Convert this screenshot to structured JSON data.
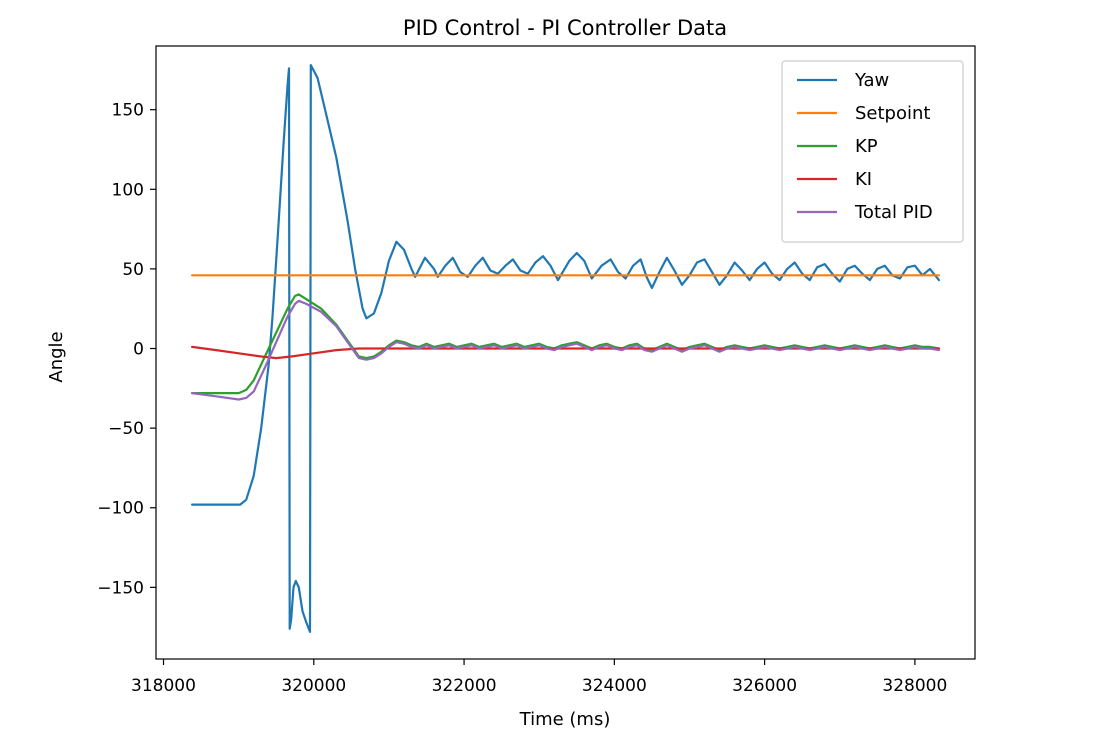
{
  "chart_data": {
    "type": "line",
    "title": "PID Control - PI Controller Data",
    "xlabel": "Time (ms)",
    "ylabel": "Angle",
    "xlim": [
      317900,
      328800
    ],
    "ylim": [
      -195,
      190
    ],
    "xticks": [
      318000,
      320000,
      322000,
      324000,
      326000,
      328000
    ],
    "xtick_labels": [
      "318000",
      "320000",
      "322000",
      "324000",
      "326000",
      "328000"
    ],
    "yticks": [
      -150,
      -100,
      -50,
      0,
      50,
      100,
      150
    ],
    "ytick_labels": [
      "−150",
      "−100",
      "−50",
      "0",
      "50",
      "100",
      "150"
    ],
    "grid": false,
    "legend_position": "top-right",
    "series": [
      {
        "name": "Yaw",
        "color": "#1f77b4",
        "points": [
          [
            318380,
            -98
          ],
          [
            318700,
            -98
          ],
          [
            319020,
            -98
          ],
          [
            319100,
            -95
          ],
          [
            319200,
            -80
          ],
          [
            319300,
            -50
          ],
          [
            319400,
            -10
          ],
          [
            319450,
            20
          ],
          [
            319520,
            70
          ],
          [
            319600,
            130
          ],
          [
            319650,
            165
          ],
          [
            319670,
            176
          ],
          [
            319680,
            -176
          ],
          [
            319700,
            -170
          ],
          [
            319730,
            -150
          ],
          [
            319760,
            -146
          ],
          [
            319800,
            -150
          ],
          [
            319850,
            -165
          ],
          [
            319900,
            -172
          ],
          [
            319950,
            -178
          ],
          [
            319960,
            178
          ],
          [
            320050,
            170
          ],
          [
            320150,
            150
          ],
          [
            320300,
            120
          ],
          [
            320450,
            80
          ],
          [
            320550,
            50
          ],
          [
            320650,
            25
          ],
          [
            320700,
            19
          ],
          [
            320800,
            22
          ],
          [
            320900,
            35
          ],
          [
            321000,
            55
          ],
          [
            321100,
            67
          ],
          [
            321200,
            62
          ],
          [
            321300,
            50
          ],
          [
            321350,
            45
          ],
          [
            321480,
            57
          ],
          [
            321600,
            50
          ],
          [
            321650,
            45
          ],
          [
            321750,
            52
          ],
          [
            321850,
            57
          ],
          [
            321950,
            48
          ],
          [
            322050,
            45
          ],
          [
            322150,
            52
          ],
          [
            322250,
            57
          ],
          [
            322350,
            49
          ],
          [
            322450,
            47
          ],
          [
            322550,
            52
          ],
          [
            322650,
            56
          ],
          [
            322750,
            49
          ],
          [
            322850,
            47
          ],
          [
            322950,
            54
          ],
          [
            323050,
            58
          ],
          [
            323150,
            52
          ],
          [
            323250,
            43
          ],
          [
            323400,
            55
          ],
          [
            323500,
            60
          ],
          [
            323600,
            55
          ],
          [
            323700,
            44
          ],
          [
            323830,
            52
          ],
          [
            323950,
            56
          ],
          [
            324050,
            48
          ],
          [
            324150,
            44
          ],
          [
            324250,
            52
          ],
          [
            324350,
            56
          ],
          [
            324430,
            45
          ],
          [
            324500,
            38
          ],
          [
            324600,
            48
          ],
          [
            324700,
            57
          ],
          [
            324800,
            49
          ],
          [
            324900,
            40
          ],
          [
            325000,
            46
          ],
          [
            325100,
            54
          ],
          [
            325200,
            56
          ],
          [
            325300,
            48
          ],
          [
            325400,
            40
          ],
          [
            325500,
            46
          ],
          [
            325600,
            54
          ],
          [
            325700,
            49
          ],
          [
            325800,
            43
          ],
          [
            325900,
            50
          ],
          [
            326000,
            54
          ],
          [
            326100,
            47
          ],
          [
            326200,
            43
          ],
          [
            326300,
            50
          ],
          [
            326400,
            54
          ],
          [
            326500,
            47
          ],
          [
            326600,
            43
          ],
          [
            326700,
            51
          ],
          [
            326800,
            53
          ],
          [
            326900,
            47
          ],
          [
            327000,
            42
          ],
          [
            327100,
            50
          ],
          [
            327200,
            52
          ],
          [
            327300,
            47
          ],
          [
            327400,
            43
          ],
          [
            327500,
            50
          ],
          [
            327600,
            52
          ],
          [
            327700,
            46
          ],
          [
            327800,
            44
          ],
          [
            327900,
            51
          ],
          [
            328000,
            52
          ],
          [
            328100,
            46
          ],
          [
            328200,
            50
          ],
          [
            328320,
            43
          ]
        ]
      },
      {
        "name": "Setpoint",
        "color": "#ff7f0e",
        "points": [
          [
            318380,
            46
          ],
          [
            328320,
            46
          ]
        ]
      },
      {
        "name": "KP",
        "color": "#2ca02c",
        "points": [
          [
            318380,
            -28
          ],
          [
            318700,
            -28
          ],
          [
            319000,
            -28
          ],
          [
            319100,
            -26
          ],
          [
            319200,
            -20
          ],
          [
            319350,
            -5
          ],
          [
            319500,
            10
          ],
          [
            319650,
            25
          ],
          [
            319750,
            33
          ],
          [
            319800,
            34
          ],
          [
            319900,
            31
          ],
          [
            320100,
            25
          ],
          [
            320300,
            15
          ],
          [
            320450,
            5
          ],
          [
            320600,
            -5
          ],
          [
            320700,
            -6
          ],
          [
            320800,
            -5
          ],
          [
            320900,
            -2
          ],
          [
            321000,
            2
          ],
          [
            321100,
            5
          ],
          [
            321200,
            4
          ],
          [
            321300,
            2
          ],
          [
            321400,
            1
          ],
          [
            321500,
            3
          ],
          [
            321600,
            1
          ],
          [
            321700,
            2
          ],
          [
            321800,
            3
          ],
          [
            321900,
            1
          ],
          [
            322000,
            2
          ],
          [
            322100,
            3
          ],
          [
            322200,
            1
          ],
          [
            322300,
            2
          ],
          [
            322400,
            3
          ],
          [
            322500,
            1
          ],
          [
            322600,
            2
          ],
          [
            322700,
            3
          ],
          [
            322800,
            1
          ],
          [
            322900,
            2
          ],
          [
            323000,
            3
          ],
          [
            323100,
            1
          ],
          [
            323200,
            0
          ],
          [
            323300,
            2
          ],
          [
            323400,
            3
          ],
          [
            323500,
            4
          ],
          [
            323600,
            2
          ],
          [
            323700,
            0
          ],
          [
            323800,
            2
          ],
          [
            323900,
            3
          ],
          [
            324000,
            1
          ],
          [
            324100,
            0
          ],
          [
            324200,
            2
          ],
          [
            324300,
            3
          ],
          [
            324400,
            0
          ],
          [
            324500,
            -1
          ],
          [
            324600,
            1
          ],
          [
            324700,
            3
          ],
          [
            324800,
            1
          ],
          [
            324900,
            -1
          ],
          [
            325000,
            1
          ],
          [
            325100,
            2
          ],
          [
            325200,
            3
          ],
          [
            325300,
            1
          ],
          [
            325400,
            -1
          ],
          [
            325500,
            1
          ],
          [
            325600,
            2
          ],
          [
            325700,
            1
          ],
          [
            325800,
            0
          ],
          [
            325900,
            1
          ],
          [
            326000,
            2
          ],
          [
            326100,
            1
          ],
          [
            326200,
            0
          ],
          [
            326300,
            1
          ],
          [
            326400,
            2
          ],
          [
            326500,
            1
          ],
          [
            326600,
            0
          ],
          [
            326700,
            1
          ],
          [
            326800,
            2
          ],
          [
            326900,
            1
          ],
          [
            327000,
            0
          ],
          [
            327100,
            1
          ],
          [
            327200,
            2
          ],
          [
            327300,
            1
          ],
          [
            327400,
            0
          ],
          [
            327500,
            1
          ],
          [
            327600,
            2
          ],
          [
            327700,
            1
          ],
          [
            327800,
            0
          ],
          [
            327900,
            1
          ],
          [
            328000,
            2
          ],
          [
            328100,
            1
          ],
          [
            328200,
            1
          ],
          [
            328320,
            0
          ]
        ]
      },
      {
        "name": "KI",
        "color": "#d62728",
        "points": [
          [
            318380,
            1
          ],
          [
            318700,
            -1
          ],
          [
            319000,
            -3
          ],
          [
            319300,
            -5
          ],
          [
            319500,
            -6
          ],
          [
            319700,
            -5
          ],
          [
            320000,
            -3
          ],
          [
            320300,
            -1
          ],
          [
            320600,
            0
          ],
          [
            321000,
            0
          ],
          [
            322000,
            0
          ],
          [
            324000,
            0
          ],
          [
            326000,
            0
          ],
          [
            328320,
            0
          ]
        ]
      },
      {
        "name": "Total PID",
        "color": "#9467bd",
        "points": [
          [
            318380,
            -28
          ],
          [
            318700,
            -30
          ],
          [
            319000,
            -32
          ],
          [
            319100,
            -31
          ],
          [
            319200,
            -27
          ],
          [
            319350,
            -12
          ],
          [
            319500,
            4
          ],
          [
            319650,
            20
          ],
          [
            319750,
            28
          ],
          [
            319800,
            30
          ],
          [
            319900,
            28
          ],
          [
            320100,
            23
          ],
          [
            320300,
            14
          ],
          [
            320450,
            4
          ],
          [
            320600,
            -6
          ],
          [
            320700,
            -7
          ],
          [
            320800,
            -6
          ],
          [
            320900,
            -3
          ],
          [
            321000,
            1
          ],
          [
            321100,
            4
          ],
          [
            321200,
            3
          ],
          [
            321300,
            1
          ],
          [
            321400,
            0
          ],
          [
            321500,
            2
          ],
          [
            321600,
            0
          ],
          [
            321700,
            1
          ],
          [
            321800,
            2
          ],
          [
            321900,
            0
          ],
          [
            322000,
            1
          ],
          [
            322100,
            2
          ],
          [
            322200,
            0
          ],
          [
            322300,
            1
          ],
          [
            322400,
            2
          ],
          [
            322500,
            0
          ],
          [
            322600,
            1
          ],
          [
            322700,
            2
          ],
          [
            322800,
            0
          ],
          [
            322900,
            1
          ],
          [
            323000,
            2
          ],
          [
            323100,
            0
          ],
          [
            323200,
            -1
          ],
          [
            323300,
            1
          ],
          [
            323400,
            2
          ],
          [
            323500,
            3
          ],
          [
            323600,
            1
          ],
          [
            323700,
            -1
          ],
          [
            323800,
            1
          ],
          [
            323900,
            2
          ],
          [
            324000,
            0
          ],
          [
            324100,
            -1
          ],
          [
            324200,
            1
          ],
          [
            324300,
            2
          ],
          [
            324400,
            -1
          ],
          [
            324500,
            -2
          ],
          [
            324600,
            0
          ],
          [
            324700,
            2
          ],
          [
            324800,
            0
          ],
          [
            324900,
            -2
          ],
          [
            325000,
            0
          ],
          [
            325100,
            1
          ],
          [
            325200,
            2
          ],
          [
            325300,
            0
          ],
          [
            325400,
            -2
          ],
          [
            325500,
            0
          ],
          [
            325600,
            1
          ],
          [
            325700,
            0
          ],
          [
            325800,
            -1
          ],
          [
            325900,
            0
          ],
          [
            326000,
            1
          ],
          [
            326100,
            0
          ],
          [
            326200,
            -1
          ],
          [
            326300,
            0
          ],
          [
            326400,
            1
          ],
          [
            326500,
            0
          ],
          [
            326600,
            -1
          ],
          [
            326700,
            0
          ],
          [
            326800,
            1
          ],
          [
            326900,
            0
          ],
          [
            327000,
            -1
          ],
          [
            327100,
            0
          ],
          [
            327200,
            1
          ],
          [
            327300,
            0
          ],
          [
            327400,
            -1
          ],
          [
            327500,
            0
          ],
          [
            327600,
            1
          ],
          [
            327700,
            0
          ],
          [
            327800,
            -1
          ],
          [
            327900,
            0
          ],
          [
            328000,
            1
          ],
          [
            328100,
            0
          ],
          [
            328200,
            0
          ],
          [
            328320,
            -1
          ]
        ]
      }
    ]
  }
}
